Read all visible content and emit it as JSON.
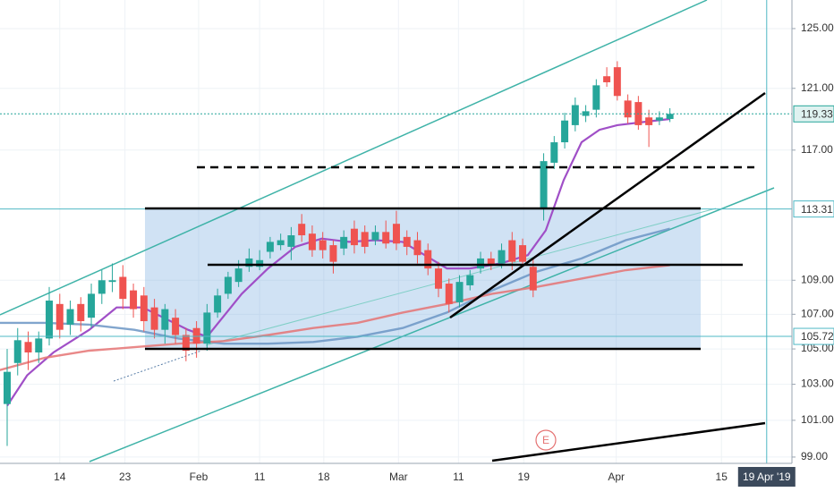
{
  "chart_data": {
    "type": "candlestick",
    "log_scale": true,
    "grid": true,
    "up_color": "#26a69a",
    "down_color": "#ef5350",
    "xlim": [
      -0.68,
      74.6
    ],
    "xticks": [
      {
        "value": 5.0,
        "label": "14"
      },
      {
        "value": 11.2,
        "label": "23"
      },
      {
        "value": 18.2,
        "label": "Feb"
      },
      {
        "value": 24.0,
        "label": "11"
      },
      {
        "value": 30.1,
        "label": "18"
      },
      {
        "value": 37.2,
        "label": "Mar"
      },
      {
        "value": 42.9,
        "label": "11"
      },
      {
        "value": 49.1,
        "label": "19"
      },
      {
        "value": 57.9,
        "label": "Apr"
      },
      {
        "value": 67.9,
        "label": "15"
      }
    ],
    "crosshair": {
      "value": 72.2,
      "label": "19 Apr '19"
    },
    "ylim": [
      98.66,
      126.96
    ],
    "yticks": [
      {
        "value": 125,
        "label": "125.00"
      },
      {
        "value": 121,
        "label": "121.00"
      },
      {
        "value": 117,
        "label": "117.00"
      },
      {
        "value": 109,
        "label": "109.00"
      },
      {
        "value": 107,
        "label": "107.00"
      },
      {
        "value": 105,
        "label": "105.00"
      },
      {
        "value": 103,
        "label": "103.00"
      },
      {
        "value": 101,
        "label": "101.00"
      },
      {
        "value": 99,
        "label": "99.00"
      }
    ],
    "price_markers": [
      {
        "value": 119.33,
        "label": "119.33",
        "color": "#26a69a"
      },
      {
        "value": 113.31,
        "label": "113.31",
        "color": "#4fb8c4"
      },
      {
        "value": 105.72,
        "label": "105.72",
        "color": "#4fb8c4"
      }
    ],
    "event_marker": "E",
    "candles": {
      "open": [
        101.9,
        104.2,
        105.4,
        104.8,
        105.6,
        107.6,
        106.4,
        107.6,
        106.8,
        108.2,
        108.9,
        109.2,
        108.4,
        108.1,
        107.4,
        106.1,
        106.8,
        105.8,
        106.2,
        105.3,
        107.1,
        108.2,
        108.9,
        109.8,
        109.8,
        110.7,
        111.1,
        111.0,
        112.4,
        111.8,
        111.4,
        111.1,
        110.9,
        112.1,
        111.9,
        111.4,
        111.9,
        112.4,
        111.6,
        111.4,
        110.8,
        109.7,
        108.8,
        107.7,
        108.7,
        109.7,
        110.3,
        110.0,
        111.4,
        111.1,
        109.8,
        113.3,
        116.2,
        117.5,
        118.6,
        119.2,
        119.6,
        121.8,
        122.4,
        120.2,
        120.1,
        119.1,
        118.9,
        119.0
      ],
      "high": [
        105.0,
        106.2,
        106.0,
        106.0,
        108.6,
        108.2,
        107.8,
        108.0,
        108.8,
        109.6,
        110.0,
        109.9,
        108.8,
        108.6,
        107.9,
        107.6,
        107.3,
        106.2,
        106.6,
        107.6,
        108.5,
        109.5,
        110.2,
        110.9,
        110.8,
        111.6,
        111.8,
        112.2,
        113.0,
        112.3,
        111.9,
        111.4,
        112.0,
        112.6,
        112.3,
        112.3,
        112.6,
        113.2,
        112.0,
        111.9,
        111.2,
        110.1,
        109.1,
        109.3,
        109.6,
        110.7,
        110.7,
        111.2,
        111.9,
        111.5,
        110.3,
        116.8,
        117.9,
        119.4,
        120.4,
        119.9,
        121.6,
        122.4,
        122.8,
        120.6,
        120.5,
        119.6,
        119.5,
        119.7
      ],
      "low": [
        99.6,
        103.5,
        103.8,
        104.2,
        105.2,
        105.6,
        105.8,
        106.0,
        106.2,
        107.6,
        108.3,
        107.3,
        106.8,
        106.0,
        105.6,
        105.3,
        105.3,
        104.3,
        104.5,
        104.9,
        106.8,
        107.9,
        108.6,
        109.5,
        109.6,
        110.3,
        110.8,
        110.2,
        111.3,
        110.4,
        110.3,
        109.4,
        110.5,
        110.6,
        110.6,
        111.1,
        110.9,
        110.8,
        110.5,
        110.0,
        109.3,
        108.0,
        107.1,
        107.4,
        108.4,
        109.4,
        109.6,
        109.7,
        109.6,
        109.8,
        108.0,
        112.6,
        115.8,
        117.1,
        118.2,
        118.8,
        119.1,
        121.1,
        120.2,
        118.7,
        118.3,
        117.2,
        118.6,
        118.8
      ],
      "close": [
        103.7,
        105.5,
        104.8,
        105.6,
        107.8,
        106.1,
        107.3,
        106.6,
        108.2,
        109.0,
        109.0,
        107.9,
        107.3,
        106.6,
        106.1,
        107.3,
        105.8,
        104.9,
        105.3,
        107.1,
        108.1,
        109.2,
        109.7,
        110.3,
        110.2,
        111.3,
        111.4,
        111.7,
        111.7,
        110.8,
        110.8,
        110.1,
        111.6,
        111.1,
        111.0,
        111.9,
        111.2,
        111.2,
        111.0,
        110.5,
        109.7,
        108.5,
        107.6,
        108.9,
        109.3,
        110.3,
        109.9,
        110.8,
        110.1,
        110.1,
        108.4,
        116.3,
        117.5,
        118.9,
        119.9,
        119.5,
        121.2,
        121.4,
        120.5,
        119.1,
        118.6,
        118.6,
        119.1,
        119.33
      ]
    },
    "lines": [
      {
        "color": "#a04fc7",
        "x": [
          0,
          1.9,
          4.4,
          7.8,
          10.4,
          12.9,
          17.2,
          19,
          22.3,
          24.8,
          27.4,
          29.9,
          32.5,
          35,
          37.6,
          39.7,
          41.8,
          44,
          46.9,
          49.5,
          51.2,
          52.9,
          54.6,
          56.3,
          58,
          60.5,
          63
        ],
        "values": [
          101.8,
          103.5,
          104.8,
          106.1,
          107.4,
          107.4,
          106.1,
          105.7,
          108.2,
          109.7,
          111,
          111.5,
          111.3,
          111.4,
          111.3,
          110.5,
          109.7,
          109.7,
          110,
          110.5,
          112,
          115.1,
          117.5,
          118.3,
          118.6,
          118.8,
          119
        ]
      },
      {
        "color": "#6b95c4",
        "x": [
          -0.7,
          3.6,
          7.8,
          12.1,
          16.3,
          20.6,
          24.8,
          29.1,
          33.3,
          37.6,
          41.8,
          46.1,
          50.3,
          54.6,
          58.8,
          63
        ],
        "values": [
          106.5,
          106.5,
          106.4,
          106.1,
          105.6,
          105.3,
          105.3,
          105.4,
          105.7,
          106.2,
          107.1,
          108.4,
          109.5,
          110.3,
          111.4,
          112.1
        ]
      },
      {
        "color": "#e57373",
        "x": [
          -0.7,
          3.6,
          7.8,
          12.1,
          16.3,
          20.6,
          24.8,
          29.1,
          33.3,
          37.6,
          41.8,
          46.1,
          50.3,
          54.6,
          58.8,
          63
        ],
        "values": [
          103.8,
          104.5,
          104.9,
          105.1,
          105.3,
          105.45,
          105.8,
          106.2,
          106.5,
          107.1,
          107.6,
          108.2,
          108.6,
          109.1,
          109.6,
          109.9
        ]
      }
    ]
  }
}
